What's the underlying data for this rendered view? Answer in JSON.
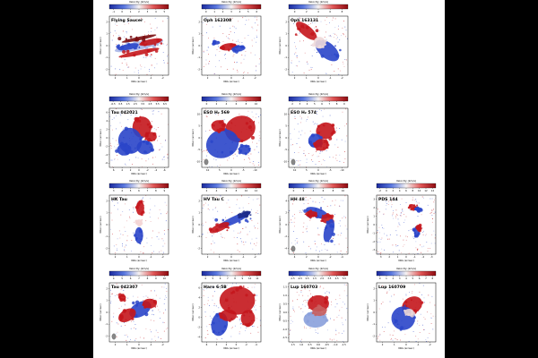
{
  "figure": {
    "colorbar_label": "Velocity (km/s)",
    "xlabel": "δRA (arcsec)",
    "ylabel": "δDec (arcsec)",
    "colors": {
      "blue": "#2a45c9",
      "red": "#c4161c",
      "white": "#ffffff",
      "mid": "#f4e9e9"
    }
  },
  "chart_data": [
    {
      "type": "heatmap",
      "title": "Flying Saucer",
      "pattern": "edge-on-disk",
      "cbar_ticks": [
        "-1",
        "0",
        "1",
        "2",
        "3",
        "4",
        "5"
      ],
      "xticks": [
        "2",
        "1",
        "0",
        "-1",
        "-2"
      ],
      "yticks": [
        "2",
        "1",
        "0",
        "-1",
        "-2"
      ],
      "beam": false
    },
    {
      "type": "heatmap",
      "title": "Oph 162308",
      "pattern": "compact-pair",
      "cbar_ticks": [
        "0",
        "1",
        "2",
        "3",
        "4",
        "5",
        "6"
      ],
      "xticks": [
        "2",
        "1",
        "0",
        "-1",
        "-2"
      ],
      "yticks": [
        "2",
        "1",
        "0",
        "-1",
        "-2"
      ],
      "beam": false
    },
    {
      "type": "heatmap",
      "title": "Oph 163131",
      "pattern": "diagonal-disk",
      "cbar_ticks": [
        "0",
        "2",
        "4",
        "6",
        "8"
      ],
      "xticks": [
        "2",
        "1",
        "0",
        "-1",
        "-2"
      ],
      "yticks": [
        "2",
        "1",
        "0",
        "-1",
        "-2"
      ],
      "beam": false
    },
    {
      "type": "heatmap",
      "title": "Tau 042021",
      "pattern": "bipolar-lobes",
      "cbar_ticks": [
        "-0.5",
        "0.5",
        "1.5",
        "2.5",
        "3.5",
        "4.5",
        "5.5",
        "6.5"
      ],
      "xticks": [
        "6",
        "4",
        "2",
        "0",
        "-2",
        "-4",
        "-6"
      ],
      "yticks": [
        "6",
        "4",
        "2",
        "0",
        "-2",
        "-4",
        "-6"
      ],
      "beam": false
    },
    {
      "type": "heatmap",
      "title": "ESO H₂ 569",
      "pattern": "large-disk",
      "cbar_ticks": [
        "0",
        "2",
        "4",
        "6",
        "8",
        "10"
      ],
      "xticks": [
        "10",
        "5",
        "0",
        "-5",
        "-10"
      ],
      "yticks": [
        "10",
        "5",
        "0",
        "-5",
        "-10"
      ],
      "beam": true
    },
    {
      "type": "heatmap",
      "title": "ESO H₂ 574",
      "pattern": "offset-pair",
      "cbar_ticks": [
        "2",
        "3",
        "4",
        "5",
        "6",
        "7",
        "8",
        "9"
      ],
      "xticks": [
        "10",
        "5",
        "0",
        "-5",
        "-10"
      ],
      "yticks": [
        "10",
        "5",
        "0",
        "-5",
        "-10"
      ],
      "beam": true
    },
    {
      "type": "heatmap",
      "title": "HK Tau",
      "pattern": "vertical-pair",
      "cbar_ticks": [
        "3",
        "4",
        "5",
        "6",
        "7",
        "8",
        "9"
      ],
      "xticks": [
        "2",
        "1",
        "0",
        "-1",
        "-2"
      ],
      "yticks": [
        "2",
        "1",
        "0",
        "-1",
        "-2"
      ],
      "beam": false
    },
    {
      "type": "heatmap",
      "title": "HV Tau C",
      "pattern": "thin-diagonal",
      "cbar_ticks": [
        "2",
        "4",
        "6",
        "8",
        "10",
        "12"
      ],
      "xticks": [
        "2",
        "1",
        "0",
        "-1",
        "-2"
      ],
      "yticks": [
        "2",
        "1",
        "0",
        "-1",
        "-2"
      ],
      "beam": false
    },
    {
      "type": "heatmap",
      "title": "HH 48",
      "pattern": "outflow-arm",
      "cbar_ticks": [
        "0",
        "2",
        "4",
        "6",
        "8",
        "10"
      ],
      "xticks": [
        "4",
        "2",
        "0",
        "-2",
        "-4"
      ],
      "yticks": [
        "4",
        "2",
        "0",
        "-2",
        "-4"
      ],
      "beam": true
    },
    {
      "type": "heatmap",
      "title": "PDS 144",
      "pattern": "sparse-pair",
      "cbar_ticks": [
        "-2",
        "0",
        "2",
        "4",
        "6",
        "8",
        "10",
        "12",
        "14"
      ],
      "xticks": [
        "3",
        "2",
        "1",
        "0",
        "-1",
        "-2",
        "-3"
      ],
      "yticks": [
        "3",
        "2",
        "1",
        "0",
        "-1",
        "-2",
        "-3"
      ],
      "beam": false
    },
    {
      "type": "heatmap",
      "title": "Tau 042307",
      "pattern": "clumpy-diagonal",
      "cbar_ticks": [
        "4",
        "5",
        "6",
        "7",
        "8",
        "9",
        "10"
      ],
      "xticks": [
        "2",
        "1",
        "0",
        "-1",
        "-2"
      ],
      "yticks": [
        "2",
        "1",
        "0",
        "-1",
        "-2"
      ],
      "beam": true
    },
    {
      "type": "heatmap",
      "title": "Haro 6-5B",
      "pattern": "extended-clouds",
      "cbar_ticks": [
        "4",
        "5",
        "6",
        "7",
        "8",
        "9",
        "10",
        "11"
      ],
      "xticks": [
        "6",
        "4",
        "2",
        "0",
        "-2",
        "-4"
      ],
      "yticks": [
        "6",
        "4",
        "2",
        "0",
        "-2",
        "-4"
      ],
      "beam": false
    },
    {
      "type": "heatmap",
      "title": "Lup 160703",
      "pattern": "faint-pair",
      "cbar_ticks": [
        "-1.5",
        "-0.5",
        "0.5",
        "1.5",
        "2.5",
        "3.5",
        "4.5",
        "5.5"
      ],
      "xticks": [
        "1.5",
        "1.0",
        "0.5",
        "0.0",
        "-0.5",
        "-1.0",
        "-1.5"
      ],
      "yticks": [
        "1.5",
        "1.0",
        "0.5",
        "0.0",
        "-0.5",
        "-1.0",
        "-1.5"
      ],
      "beam": false
    },
    {
      "type": "heatmap",
      "title": "Lup 160709",
      "pattern": "tilted-pair",
      "cbar_ticks": [
        "0",
        "1",
        "2",
        "3",
        "4",
        "5",
        "6",
        "7",
        "8"
      ],
      "xticks": [
        "2",
        "1",
        "0",
        "-1",
        "-2"
      ],
      "yticks": [
        "2",
        "1",
        "0",
        "-1",
        "-2"
      ],
      "beam": false
    }
  ]
}
